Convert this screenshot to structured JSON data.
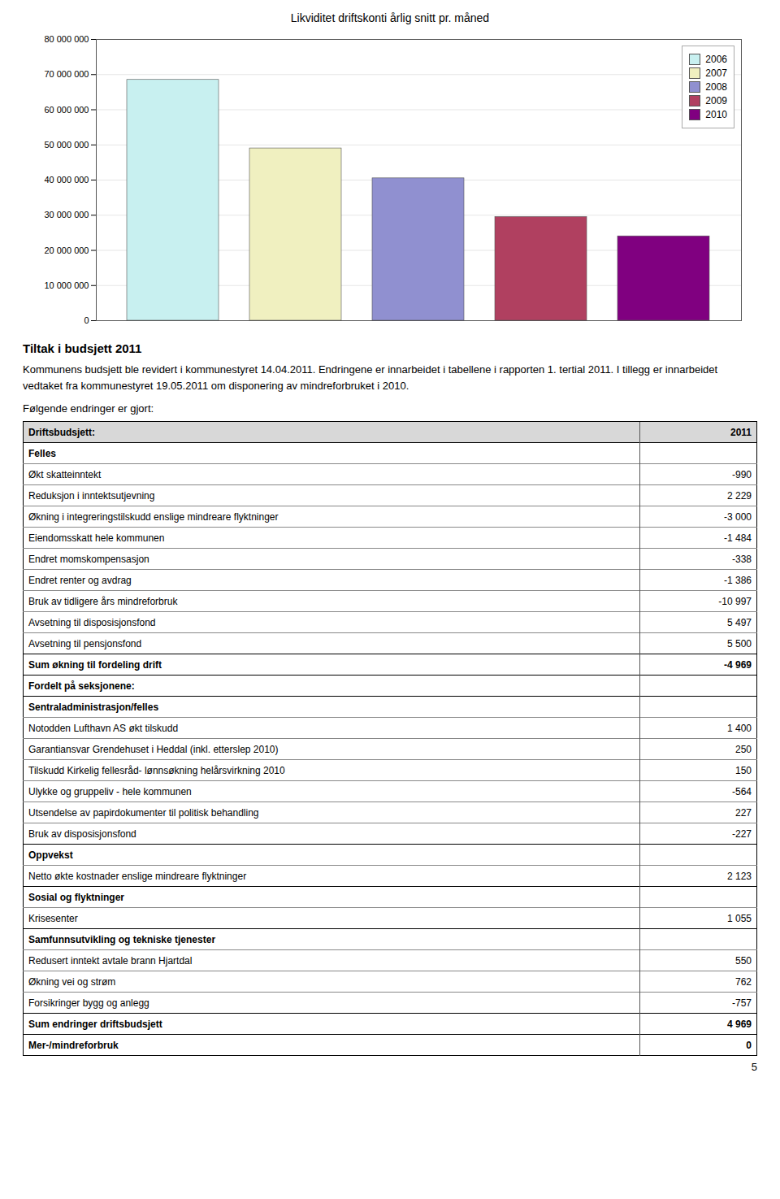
{
  "chart_data": {
    "type": "bar",
    "title": "Likviditet driftskonti årlig snitt pr. måned",
    "categories": [
      "2006",
      "2007",
      "2008",
      "2009",
      "2010"
    ],
    "values": [
      68500000,
      49000000,
      40500000,
      29500000,
      24000000
    ],
    "colors": [
      "#c8f0f0",
      "#f0f0c0",
      "#9090d0",
      "#b04060",
      "#800080"
    ],
    "ylim": [
      0,
      80000000
    ],
    "yticks": [
      0,
      {
        "value": 10000000,
        "label": "10 000 000"
      },
      {
        "value": 20000000,
        "label": "20 000 000"
      },
      {
        "value": 30000000,
        "label": "30 000 000"
      },
      {
        "value": 40000000,
        "label": "40 000 000"
      },
      {
        "value": 50000000,
        "label": "50 000 000"
      },
      {
        "value": 60000000,
        "label": "60 000 000"
      },
      {
        "value": 70000000,
        "label": "70 000 000"
      },
      {
        "value": 80000000,
        "label": "80 000 000"
      }
    ],
    "grid": true,
    "legend": "upper right",
    "tick_labels": "y"
  },
  "intro_title": "Tiltak i budsjett 2011",
  "intro_text": "Kommunens budsjett ble revidert i kommunestyret 14.04.2011. Endringene er innarbeidet i tabellene i rapporten 1. tertial 2011. I tillegg er innarbeidet vedtaket fra kommunestyret 19.05.2011 om disponering av mindreforbruket i 2010.",
  "following_text": "Følgende endringer er gjort:",
  "table": {
    "header": [
      "Driftsbudsjett:",
      "2011"
    ],
    "rows": [
      {
        "label": "Felles",
        "value": null,
        "bold": true
      },
      {
        "label": "Økt skatteinntekt",
        "value": "-990",
        "bold": false
      },
      {
        "label": "Reduksjon i inntektsutjevning",
        "value": "2 229",
        "bold": false
      },
      {
        "label": "Økning i integreringstilskudd enslige mindreare flyktninger",
        "value": "-3 000",
        "bold": false
      },
      {
        "label": "Eiendomsskatt hele kommunen",
        "value": "-1 484",
        "bold": false
      },
      {
        "label": "Endret momskompensasjon",
        "value": "-338",
        "bold": false
      },
      {
        "label": "Endret renter og avdrag",
        "value": "-1 386",
        "bold": false
      },
      {
        "label": "Bruk av tidligere års mindreforbruk",
        "value": "-10 997",
        "bold": false
      },
      {
        "label": "Avsetning til disposisjonsfond",
        "value": "5 497",
        "bold": false
      },
      {
        "label": "Avsetning til pensjonsfond",
        "value": "5 500",
        "bold": false
      },
      {
        "label": "Sum økning til fordeling drift",
        "value": "-4 969",
        "bold": true
      },
      {
        "label": "Fordelt på seksjonene:",
        "value": null,
        "bold": true
      },
      {
        "label": "Sentraladministrasjon/felles",
        "value": null,
        "bold": true
      },
      {
        "label": "Notodden Lufthavn AS økt tilskudd",
        "value": "1 400",
        "bold": false
      },
      {
        "label": "Garantiansvar Grendehuset i Heddal (inkl. etterslep 2010)",
        "value": "250",
        "bold": false
      },
      {
        "label": "Tilskudd Kirkelig fellesråd- lønnsøkning helårsvirkning 2010",
        "value": "150",
        "bold": false
      },
      {
        "label": "Ulykke og gruppeliv - hele kommunen",
        "value": "-564",
        "bold": false
      },
      {
        "label": "Utsendelse av papirdokumenter til politisk behandling",
        "value": "227",
        "bold": false
      },
      {
        "label": "Bruk av disposisjonsfond",
        "value": "-227",
        "bold": false
      },
      {
        "label": "Oppvekst",
        "value": null,
        "bold": true
      },
      {
        "label": "Netto økte kostnader enslige mindreare flyktninger",
        "value": "2 123",
        "bold": false
      },
      {
        "label": "Sosial og flyktninger",
        "value": null,
        "bold": true
      },
      {
        "label": "Krisesenter",
        "value": "1 055",
        "bold": false
      },
      {
        "label": "Samfunnsutvikling og tekniske tjenester",
        "value": null,
        "bold": true
      },
      {
        "label": "Redusert inntekt avtale brann Hjartdal",
        "value": "550",
        "bold": false
      },
      {
        "label": "Økning vei og strøm",
        "value": "762",
        "bold": false
      },
      {
        "label": "Forsikringer bygg og anlegg",
        "value": "-757",
        "bold": false
      },
      {
        "label": "Sum endringer driftsbudsjett",
        "value": "4 969",
        "bold": true
      },
      {
        "label": "Mer-/mindreforbruk",
        "value": "0",
        "bold": true
      }
    ]
  },
  "page_number": "5"
}
